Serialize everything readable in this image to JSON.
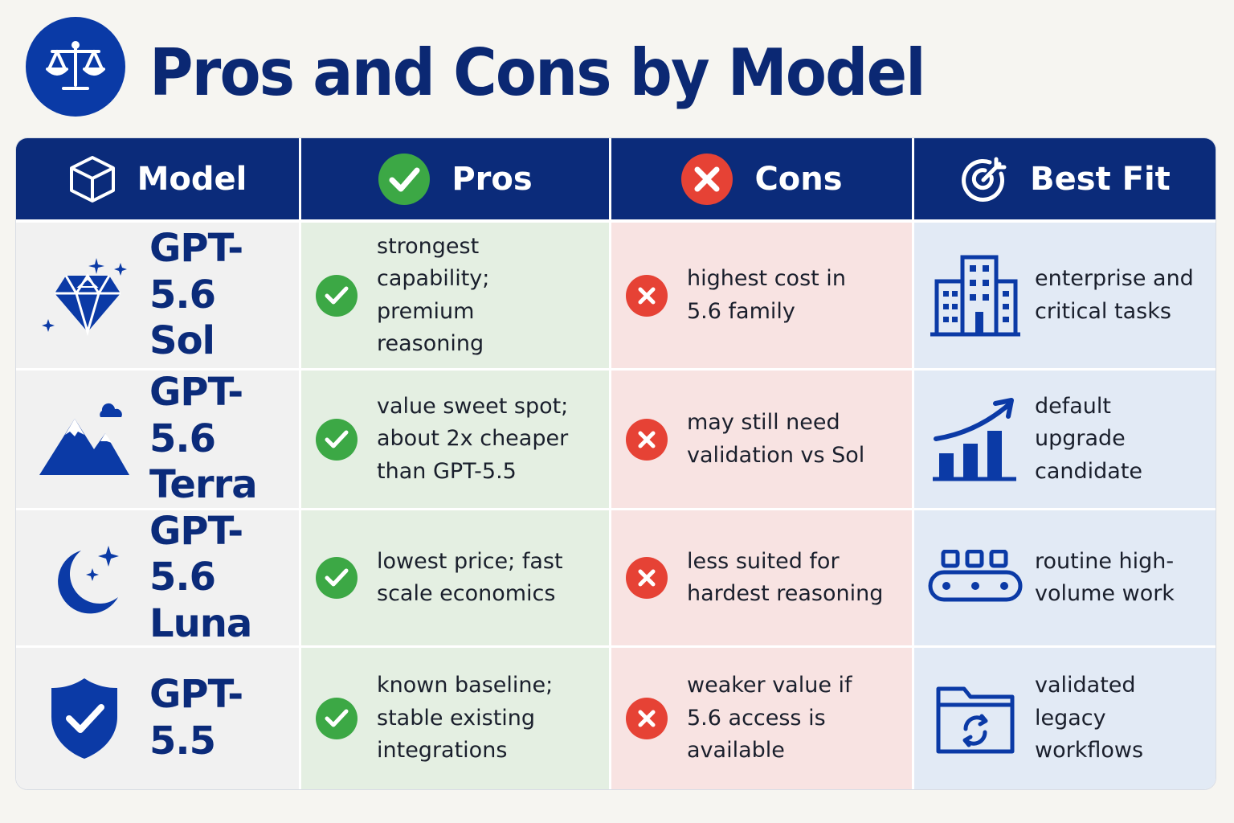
{
  "title": "Pros and Cons by Model",
  "title_icon": "scales-icon",
  "colors": {
    "navy": "#0b2b7a",
    "accent_blue": "#0a3aa6",
    "pros_bg": "#e4efe2",
    "cons_bg": "#f8e3e2",
    "fit_bg": "#e2eaf5",
    "check_green": "#3ca845",
    "x_red": "#e64235"
  },
  "headers": {
    "model": "Model",
    "pros": "Pros",
    "cons": "Cons",
    "best_fit": "Best Fit"
  },
  "rows": [
    {
      "model_line1": "GPT-5.6",
      "model_line2": "Sol",
      "model_icon": "diamond-icon",
      "pros": "strongest capability; premium reasoning",
      "cons": "highest cost in 5.6 family",
      "best_fit": "enterprise and critical tasks",
      "fit_icon": "building-icon"
    },
    {
      "model_line1": "GPT-5.6",
      "model_line2": "Terra",
      "model_icon": "mountain-icon",
      "pros": "value sweet spot; about 2x cheaper than GPT-5.5",
      "cons": "may still need validation vs Sol",
      "best_fit": "default upgrade candidate",
      "fit_icon": "growth-chart-icon"
    },
    {
      "model_line1": "GPT-5.6",
      "model_line2": "Luna",
      "model_icon": "moon-icon",
      "pros": "lowest price; fast scale economics",
      "cons": "less suited for hardest reasoning",
      "best_fit": "routine high-volume work",
      "fit_icon": "conveyor-icon"
    },
    {
      "model_line1": "GPT-5.5",
      "model_line2": "",
      "model_icon": "shield-check-icon",
      "pros": "known baseline; stable existing integrations",
      "cons": "weaker value if 5.6 access is available",
      "best_fit": "validated legacy workflows",
      "fit_icon": "folder-sync-icon"
    }
  ]
}
